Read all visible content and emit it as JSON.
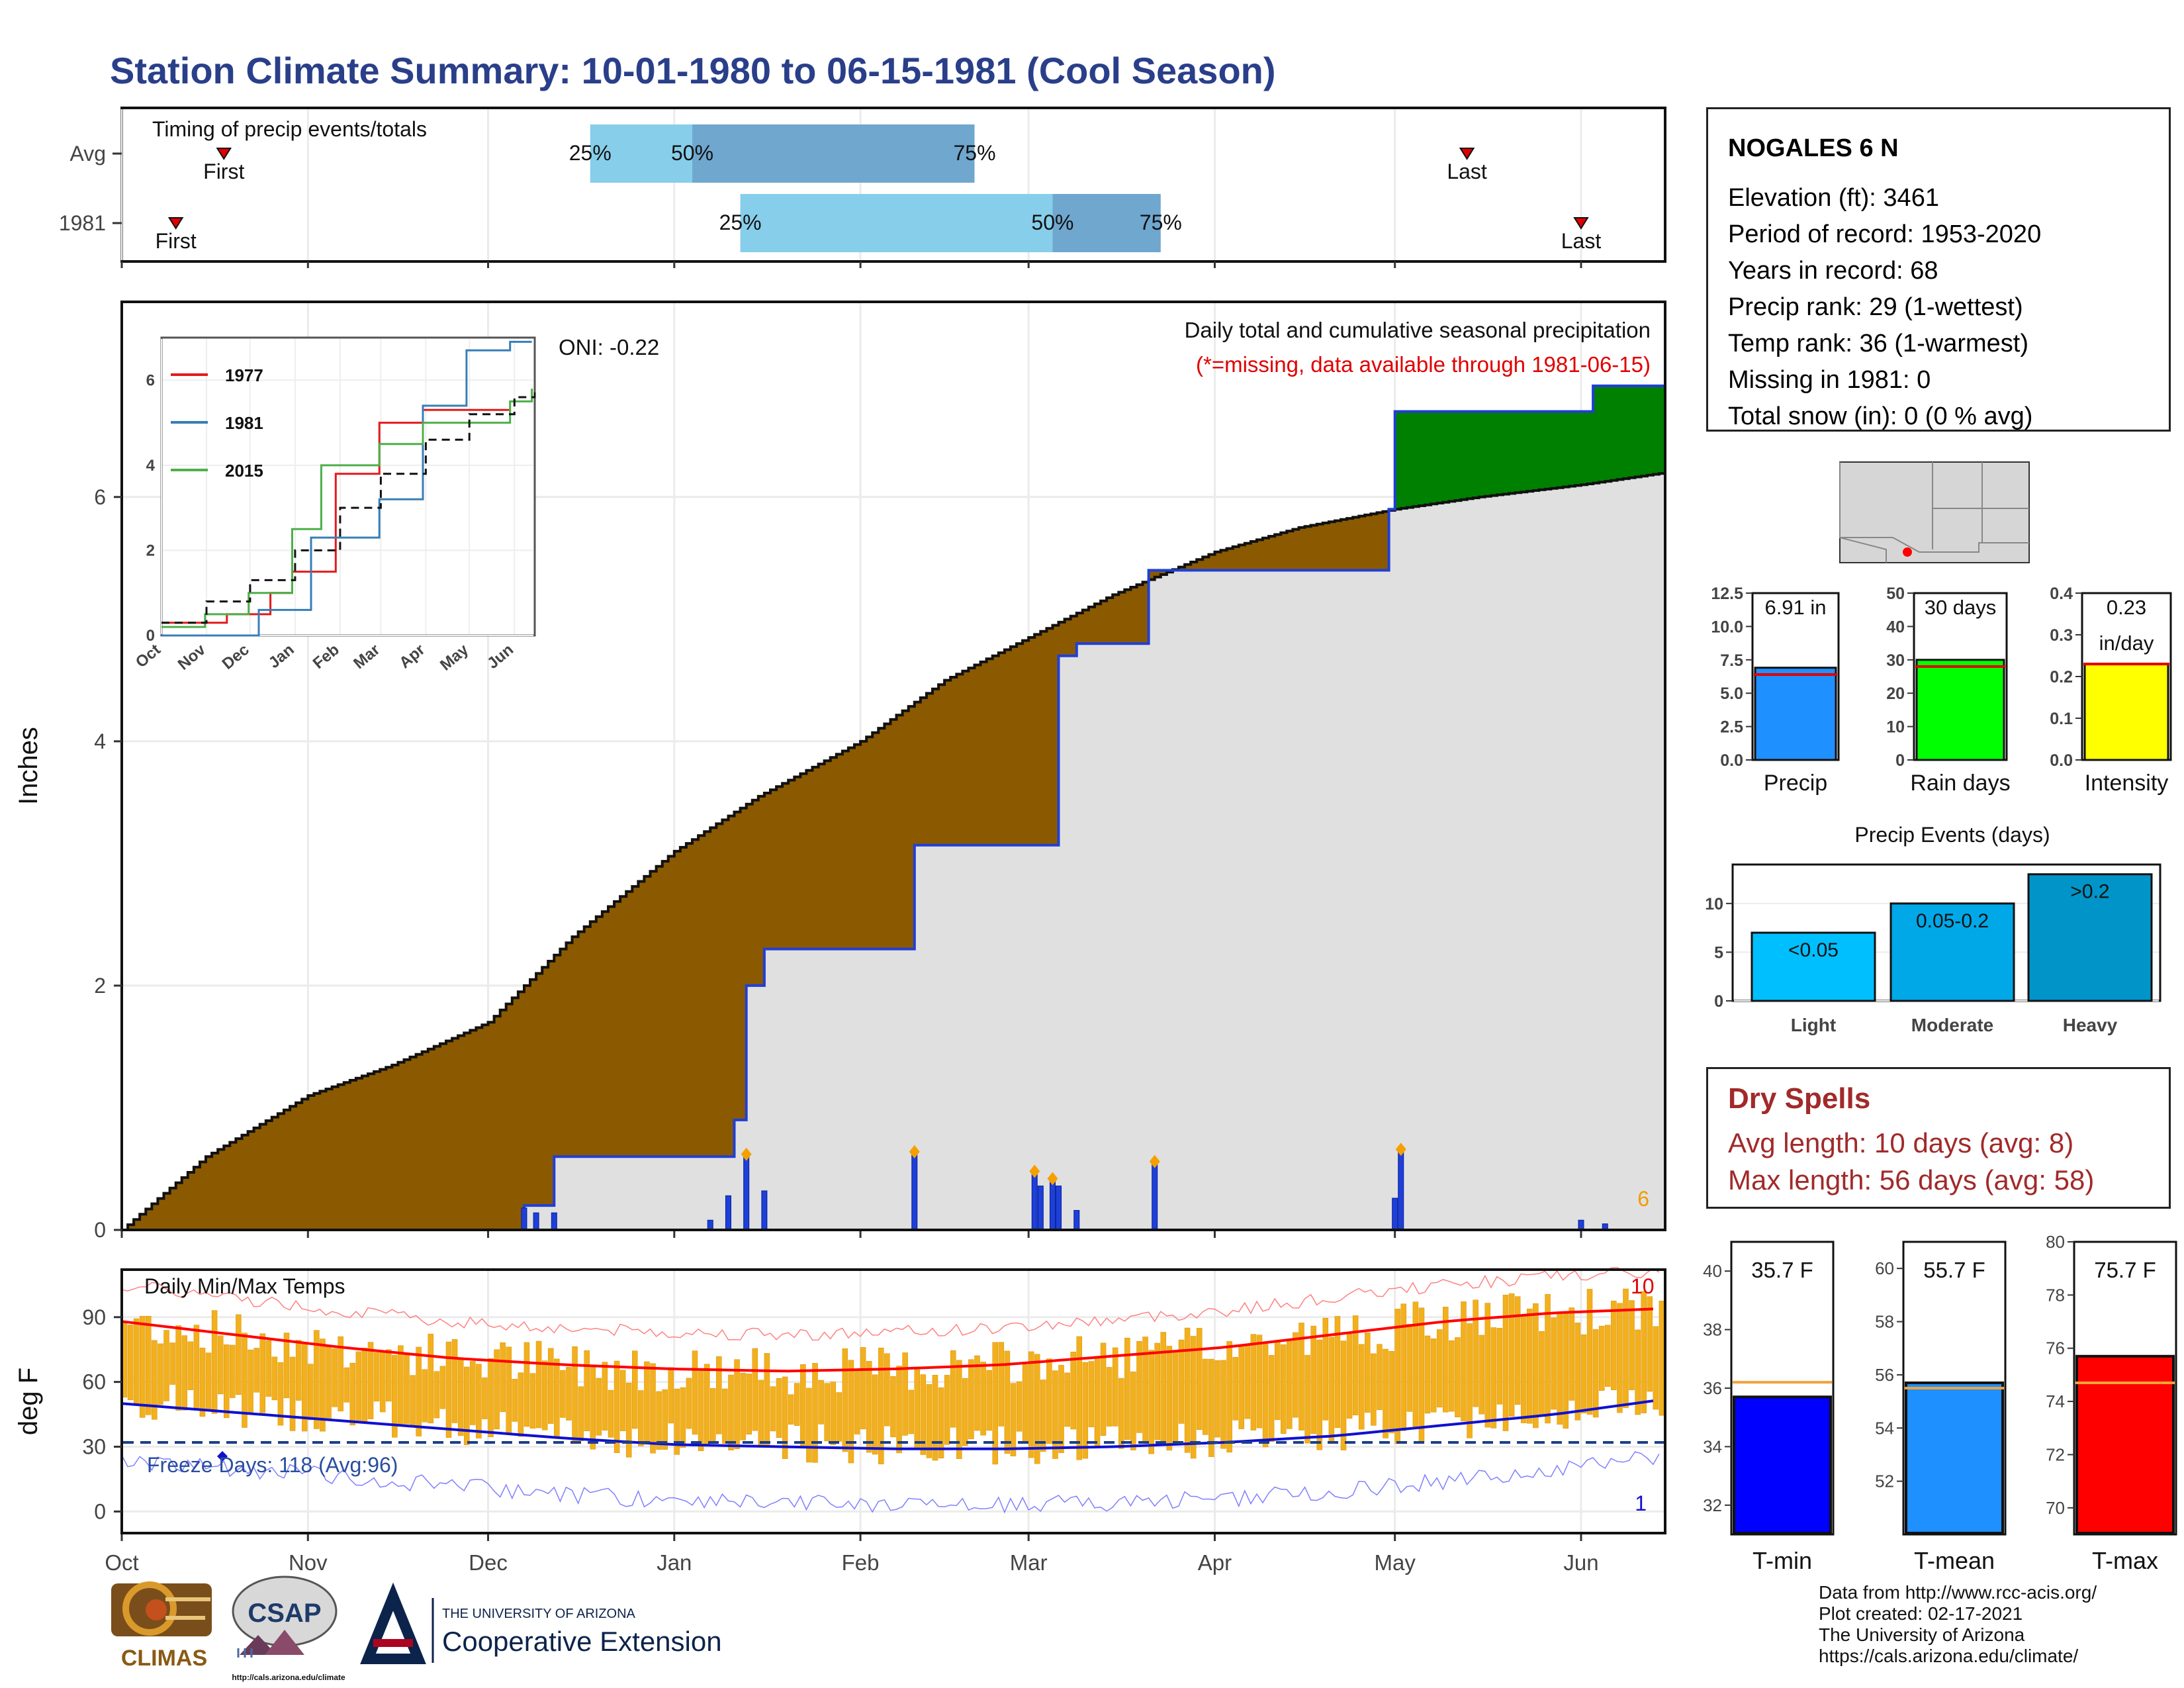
{
  "title": "Station Climate Summary: 10-01-1980 to 06-15-1981 (Cool Season)",
  "colors": {
    "title": "#2a3f8a",
    "avg_band_light": "#87ceeb",
    "avg_band_dark": "#6fa7cf",
    "fill_brown": "#8b5a00",
    "fill_green": "#008000",
    "fill_grey": "#e0e0e0",
    "precip_blue": "#1f3fd6",
    "temp_bar": "#f2b01e",
    "tmax_avg": "#ff0000",
    "tmin_avg": "#1010d0"
  },
  "timing_panel": {
    "heading": "Timing of precip events/totals",
    "rows": [
      {
        "label": "Avg",
        "first_label": "First",
        "last_label": "Last",
        "first_date": "1980-10-18",
        "last_date": "1981-05-13",
        "q25_label": "25%",
        "q50_label": "50%",
        "q75_label": "75%",
        "q25": "1980-12-18",
        "q50": "1981-01-04",
        "q75": "1981-02-20"
      },
      {
        "label": "1981",
        "first_label": "First",
        "last_label": "Last",
        "first_date": "1980-10-10",
        "last_date": "1981-06-01",
        "q25_label": "25%",
        "q50_label": "50%",
        "q75_label": "75%",
        "q25": "1981-01-12",
        "q50": "1981-03-05",
        "q75": "1981-03-23"
      }
    ]
  },
  "precip_panel": {
    "heading": "Daily total and cumulative seasonal precipitation",
    "subheading": "(*=missing, data available through 1981-06-15)",
    "ylabel": "Inches",
    "oni_label": "ONI: -0.22",
    "corner_count": "6",
    "yticks": [
      "0",
      "2",
      "4",
      "6"
    ]
  },
  "month_labels": [
    "Oct",
    "Nov",
    "Dec",
    "Jan",
    "Feb",
    "Mar",
    "Apr",
    "May",
    "Jun"
  ],
  "inset": {
    "legend": [
      "1977",
      "1981",
      "2015"
    ],
    "legend_colors": [
      "#e41a1c",
      "#377eb8",
      "#4daf4a"
    ],
    "yticks": [
      "0",
      "2",
      "4",
      "6"
    ],
    "xticks": [
      "Oct",
      "Nov",
      "Dec",
      "Jan",
      "Feb",
      "Mar",
      "Apr",
      "May",
      "Jun"
    ]
  },
  "temp_panel": {
    "heading": "Daily Min/Max Temps",
    "ylabel": "deg F",
    "freeze_label": "Freeze Days: 118 (Avg:96)",
    "yticks": [
      "0",
      "30",
      "60",
      "90"
    ],
    "count_high": "10",
    "count_low": "1"
  },
  "station": {
    "name": "NOGALES 6 N",
    "lines": [
      "Elevation (ft): 3461",
      "Period of record: 1953-2020",
      "Years in record: 68",
      "Precip rank: 29 (1-wettest)",
      "Temp rank: 36 (1-warmest)",
      "Missing in 1981: 0",
      "Total snow (in): 0 (0 % avg)"
    ]
  },
  "mini_bars": [
    {
      "label": "Precip",
      "value_label": "6.91 in",
      "value": 6.91,
      "avg": 6.4,
      "ymax": 12.5,
      "yticks": [
        "0.0",
        "2.5",
        "5.0",
        "7.5",
        "10.0",
        "12.5"
      ],
      "color": "#1e90ff"
    },
    {
      "label": "Rain days",
      "value_label": "30 days",
      "value": 30,
      "avg": 28,
      "ymax": 50,
      "yticks": [
        "0",
        "10",
        "20",
        "30",
        "40",
        "50"
      ],
      "color": "#00ff00"
    },
    {
      "label": "Intensity",
      "value_label": "0.23",
      "value_label2": "in/day",
      "value": 0.23,
      "avg": 0.23,
      "ymax": 0.4,
      "yticks": [
        "0.0",
        "0.1",
        "0.2",
        "0.3",
        "0.4"
      ],
      "color": "#ffff00"
    }
  ],
  "precip_events": {
    "title": "Precip Events (days)",
    "categories": [
      "Light",
      "Moderate",
      "Heavy"
    ],
    "bar_labels": [
      "<0.05",
      "0.05-0.2",
      ">0.2"
    ],
    "values": [
      7,
      10,
      13
    ],
    "yticks": [
      "0",
      "5",
      "10"
    ],
    "colors": [
      "#00bfff",
      "#00a8e8",
      "#0094c8"
    ]
  },
  "dry_spells": {
    "title": "Dry Spells",
    "avg_line": "Avg length: 10 days (avg: 8)",
    "max_line": "Max length: 56 days (avg: 58)"
  },
  "temp_bars": [
    {
      "label": "T-min",
      "value_label": "35.7 F",
      "value": 35.7,
      "avg": 36.2,
      "ymin": 31,
      "ymax": 41,
      "yticks": [
        "32",
        "34",
        "36",
        "38",
        "40"
      ],
      "color": "#0000ff"
    },
    {
      "label": "T-mean",
      "value_label": "55.7 F",
      "value": 55.7,
      "avg": 55.5,
      "ymin": 50,
      "ymax": 61,
      "yticks": [
        "52",
        "54",
        "56",
        "58",
        "60"
      ],
      "color": "#1e90ff"
    },
    {
      "label": "T-max",
      "value_label": "75.7 F",
      "value": 75.7,
      "avg": 74.7,
      "ymin": 69,
      "ymax": 80,
      "yticks": [
        "70",
        "72",
        "74",
        "76",
        "78",
        "80"
      ],
      "color": "#ff0000"
    }
  ],
  "footer": {
    "lines": [
      "Data from http://www.rcc-acis.org/",
      "Plot created: 02-17-2021",
      "The University of Arizona",
      "https://cals.arizona.edu/climate/"
    ],
    "logo_climas": "CLIMAS",
    "logo_csap": "CSAP",
    "logo_csap_url": "http://cals.arizona.edu/climate",
    "logo_ua_small": "THE UNIVERSITY OF ARIZONA",
    "logo_ua_big": "Cooperative Extension"
  },
  "chart_data": [
    {
      "type": "area",
      "title": "Daily total and cumulative seasonal precipitation",
      "ylabel": "Inches",
      "ylim": [
        0,
        7.5
      ],
      "x_range": [
        "1980-10-01",
        "1981-06-15"
      ],
      "series": [
        {
          "name": "1981",
          "x": [
            "1980-10-01",
            "1980-12-07",
            "1980-12-12",
            "1981-01-03",
            "1981-01-11",
            "1981-01-13",
            "1981-01-16",
            "1981-02-10",
            "1981-03-03",
            "1981-03-06",
            "1981-03-09",
            "1981-03-21",
            "1981-04-30",
            "1981-05-01",
            "1981-06-01",
            "1981-06-03",
            "1981-06-15"
          ],
          "values": [
            0,
            0.2,
            0.6,
            0.6,
            0.9,
            2.0,
            2.3,
            3.15,
            3.15,
            4.7,
            4.8,
            5.4,
            5.9,
            6.7,
            6.7,
            6.91,
            6.91
          ]
        },
        {
          "name": "Avg",
          "x": [
            "1980-10-01",
            "1980-10-15",
            "1980-11-01",
            "1980-11-15",
            "1980-12-01",
            "1980-12-15",
            "1981-01-01",
            "1981-01-15",
            "1981-02-01",
            "1981-02-15",
            "1981-03-01",
            "1981-03-15",
            "1981-04-01",
            "1981-04-15",
            "1981-05-01",
            "1981-05-15",
            "1981-06-01",
            "1981-06-15"
          ],
          "values": [
            0,
            0.6,
            1.1,
            1.35,
            1.7,
            2.4,
            3.1,
            3.55,
            4.0,
            4.5,
            4.85,
            5.2,
            5.55,
            5.75,
            5.9,
            6.0,
            6.1,
            6.2
          ]
        }
      ],
      "daily_x": [
        "1980-12-07",
        "1980-12-09",
        "1980-12-12",
        "1981-01-07",
        "1981-01-10",
        "1981-01-13",
        "1981-01-16",
        "1981-02-10",
        "1981-03-02",
        "1981-03-03",
        "1981-03-05",
        "1981-03-06",
        "1981-03-09",
        "1981-03-22",
        "1981-05-01",
        "1981-05-02",
        "1981-06-01",
        "1981-06-05"
      ],
      "daily_values": [
        0.18,
        0.14,
        0.14,
        0.08,
        0.28,
        0.62,
        0.32,
        0.64,
        0.48,
        0.36,
        0.42,
        0.36,
        0.16,
        0.56,
        0.26,
        0.66,
        0.08,
        0.05
      ]
    },
    {
      "type": "line",
      "title": "inset cumulative precipitation",
      "ylim": [
        0,
        7
      ],
      "series": [
        {
          "name": "1977",
          "x": [
            0,
            45,
            55,
            75,
            90,
            120,
            150,
            180,
            240
          ],
          "values": [
            0.3,
            0.5,
            0.5,
            1.0,
            1.5,
            3.8,
            5.0,
            5.3,
            5.3
          ]
        },
        {
          "name": "1981",
          "x": [
            0,
            67,
            103,
            150,
            180,
            210,
            240,
            255
          ],
          "values": [
            0,
            0.6,
            2.3,
            3.2,
            5.4,
            6.7,
            6.9,
            6.9
          ]
        },
        {
          "name": "2015",
          "x": [
            0,
            30,
            60,
            90,
            110,
            150,
            180,
            240,
            255
          ],
          "values": [
            0.2,
            0.5,
            1.0,
            2.5,
            4.0,
            4.5,
            5.0,
            5.5,
            5.8
          ]
        },
        {
          "name": "Avg",
          "x": [
            0,
            31,
            61,
            92,
            123,
            151,
            182,
            212,
            243,
            257
          ],
          "values": [
            0.3,
            0.8,
            1.3,
            2.0,
            3.0,
            3.8,
            4.6,
            5.2,
            5.6,
            5.8
          ]
        }
      ]
    },
    {
      "type": "bar",
      "title": "Daily Min/Max Temps",
      "ylabel": "deg F",
      "ylim": [
        -10,
        112
      ],
      "x_range": [
        "1980-10-01",
        "1981-06-15"
      ],
      "avg_tmax": [
        88,
        82,
        76,
        71,
        68,
        66,
        65,
        66,
        68,
        72,
        76,
        82,
        88,
        92,
        94
      ],
      "avg_tmin": [
        50,
        46,
        42,
        38,
        34,
        31,
        30,
        29,
        29,
        30,
        32,
        35,
        40,
        45,
        52
      ],
      "freeze_threshold": 32
    }
  ]
}
